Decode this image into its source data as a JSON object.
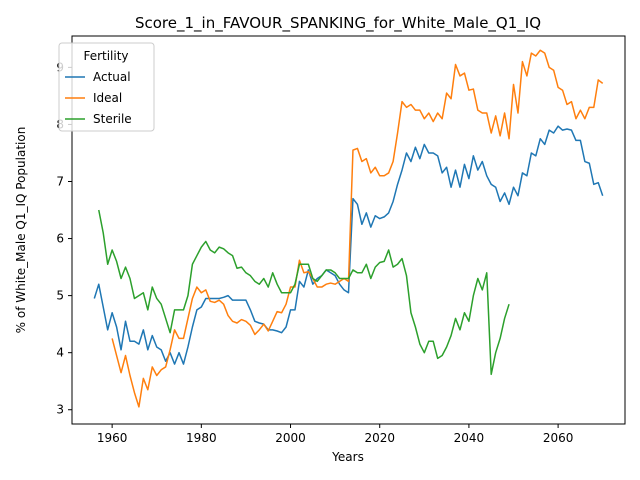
{
  "chart_data": {
    "type": "line",
    "title": "Score_1_in_FAVOUR_SPANKING_for_White_Male_Q1_IQ",
    "xlabel": "Years",
    "ylabel": "% of White_Male Q1_IQ Population",
    "xlim": [
      1951,
      2075
    ],
    "ylim": [
      2.75,
      9.55
    ],
    "xticks": [
      1960,
      1980,
      2000,
      2020,
      2040,
      2060
    ],
    "yticks": [
      3,
      4,
      5,
      6,
      7,
      8,
      9
    ],
    "grid": false,
    "legend": {
      "title": "Fertility",
      "placement": "top-left"
    },
    "series": [
      {
        "name": "Actual",
        "color": "#1f77b4",
        "x": [
          1956,
          1957,
          1958,
          1959,
          1960,
          1961,
          1962,
          1963,
          1964,
          1965,
          1966,
          1967,
          1968,
          1969,
          1970,
          1971,
          1972,
          1973,
          1974,
          1975,
          1976,
          1977,
          1978,
          1979,
          1980,
          1981,
          1982,
          1983,
          1984,
          1985,
          1986,
          1987,
          1988,
          1989,
          1990,
          1991,
          1992,
          1993,
          1994,
          1995,
          1996,
          1997,
          1998,
          1999,
          2000,
          2001,
          2002,
          2003,
          2004,
          2005,
          2006,
          2007,
          2008,
          2009,
          2010,
          2011,
          2012,
          2013,
          2014,
          2015,
          2016,
          2017,
          2018,
          2019,
          2020,
          2021,
          2022,
          2023,
          2024,
          2025,
          2026,
          2027,
          2028,
          2029,
          2030,
          2031,
          2032,
          2033,
          2034,
          2035,
          2036,
          2037,
          2038,
          2039,
          2040,
          2041,
          2042,
          2043,
          2044,
          2045,
          2046,
          2047,
          2048,
          2049,
          2050,
          2051,
          2052,
          2053,
          2054,
          2055,
          2056,
          2057,
          2058,
          2059,
          2060,
          2061,
          2062,
          2063,
          2064,
          2065,
          2066,
          2067,
          2068,
          2069,
          2070
        ],
        "y": [
          4.95,
          5.2,
          4.8,
          4.4,
          4.7,
          4.45,
          4.05,
          4.55,
          4.2,
          4.2,
          4.15,
          4.4,
          4.05,
          4.3,
          4.1,
          4.05,
          3.85,
          4.0,
          3.8,
          4.0,
          3.8,
          4.1,
          4.45,
          4.75,
          4.8,
          4.95,
          4.95,
          4.95,
          4.95,
          4.97,
          5.0,
          4.92,
          4.92,
          4.92,
          4.92,
          4.75,
          4.55,
          4.52,
          4.5,
          4.4,
          4.4,
          4.38,
          4.35,
          4.45,
          4.75,
          4.75,
          5.25,
          5.15,
          5.45,
          5.2,
          5.3,
          5.35,
          5.45,
          5.4,
          5.35,
          5.2,
          5.1,
          5.05,
          6.7,
          6.6,
          6.25,
          6.45,
          6.2,
          6.4,
          6.35,
          6.38,
          6.45,
          6.65,
          6.95,
          7.2,
          7.5,
          7.35,
          7.6,
          7.4,
          7.65,
          7.5,
          7.5,
          7.45,
          7.15,
          7.25,
          6.9,
          7.2,
          6.9,
          7.3,
          7.05,
          7.45,
          7.2,
          7.35,
          7.1,
          6.95,
          6.9,
          6.65,
          6.8,
          6.6,
          6.9,
          6.75,
          7.15,
          7.1,
          7.5,
          7.45,
          7.75,
          7.65,
          7.9,
          7.85,
          7.97,
          7.9,
          7.92,
          7.9,
          7.72,
          7.72,
          7.35,
          7.32,
          6.95,
          6.98,
          6.75
        ]
      },
      {
        "name": "Ideal",
        "color": "#ff7f0e",
        "x": [
          1960,
          1961,
          1962,
          1963,
          1964,
          1965,
          1966,
          1967,
          1968,
          1969,
          1970,
          1971,
          1972,
          1973,
          1974,
          1975,
          1976,
          1977,
          1978,
          1979,
          1980,
          1981,
          1982,
          1983,
          1984,
          1985,
          1986,
          1987,
          1988,
          1989,
          1990,
          1991,
          1992,
          1993,
          1994,
          1995,
          1996,
          1997,
          1998,
          1999,
          2000,
          2001,
          2002,
          2003,
          2004,
          2005,
          2006,
          2007,
          2008,
          2009,
          2010,
          2011,
          2012,
          2013,
          2014,
          2015,
          2016,
          2017,
          2018,
          2019,
          2020,
          2021,
          2022,
          2023,
          2024,
          2025,
          2026,
          2027,
          2028,
          2029,
          2030,
          2031,
          2032,
          2033,
          2034,
          2035,
          2036,
          2037,
          2038,
          2039,
          2040,
          2041,
          2042,
          2043,
          2044,
          2045,
          2046,
          2047,
          2048,
          2049,
          2050,
          2051,
          2052,
          2053,
          2054,
          2055,
          2056,
          2057,
          2058,
          2059,
          2060,
          2061,
          2062,
          2063,
          2064,
          2065,
          2066,
          2067,
          2068,
          2069,
          2070
        ],
        "y": [
          4.25,
          3.95,
          3.65,
          3.95,
          3.6,
          3.3,
          3.05,
          3.55,
          3.35,
          3.75,
          3.6,
          3.7,
          3.75,
          4.05,
          4.4,
          4.25,
          4.25,
          4.6,
          4.95,
          5.15,
          5.05,
          5.1,
          4.9,
          4.88,
          4.92,
          4.85,
          4.65,
          4.55,
          4.52,
          4.58,
          4.55,
          4.48,
          4.32,
          4.4,
          4.5,
          4.38,
          4.55,
          4.72,
          4.7,
          4.85,
          5.15,
          5.15,
          5.62,
          5.4,
          5.42,
          5.3,
          5.15,
          5.15,
          5.2,
          5.22,
          5.2,
          5.25,
          5.3,
          5.25,
          7.55,
          7.58,
          7.35,
          7.4,
          7.15,
          7.25,
          7.1,
          7.1,
          7.15,
          7.35,
          7.85,
          8.4,
          8.3,
          8.35,
          8.25,
          8.25,
          8.1,
          8.2,
          8.05,
          8.2,
          8.1,
          8.55,
          8.45,
          9.05,
          8.85,
          8.9,
          8.6,
          8.62,
          8.25,
          8.2,
          8.2,
          7.85,
          8.15,
          7.8,
          8.2,
          7.75,
          8.7,
          8.2,
          9.1,
          8.85,
          9.25,
          9.2,
          9.3,
          9.25,
          9.0,
          8.95,
          8.65,
          8.6,
          8.35,
          8.4,
          8.1,
          8.25,
          8.1,
          8.3,
          8.3,
          8.78,
          8.72
        ]
      },
      {
        "name": "Sterile",
        "color": "#2ca02c",
        "x": [
          1957,
          1958,
          1959,
          1960,
          1961,
          1962,
          1963,
          1964,
          1965,
          1966,
          1967,
          1968,
          1969,
          1970,
          1971,
          1972,
          1973,
          1974,
          1975,
          1976,
          1977,
          1978,
          1979,
          1980,
          1981,
          1982,
          1983,
          1984,
          1985,
          1986,
          1987,
          1988,
          1989,
          1990,
          1991,
          1992,
          1993,
          1994,
          1995,
          1996,
          1997,
          1998,
          1999,
          2000,
          2001,
          2002,
          2003,
          2004,
          2005,
          2006,
          2007,
          2008,
          2009,
          2010,
          2011,
          2012,
          2013,
          2014,
          2015,
          2016,
          2017,
          2018,
          2019,
          2020,
          2021,
          2022,
          2023,
          2024,
          2025,
          2026,
          2027,
          2028,
          2029,
          2030,
          2031,
          2032,
          2033,
          2034,
          2035,
          2036,
          2037,
          2038,
          2039,
          2040,
          2041,
          2042,
          2043,
          2044,
          2045,
          2046,
          2047,
          2048,
          2049
        ],
        "y": [
          6.5,
          6.1,
          5.55,
          5.8,
          5.6,
          5.3,
          5.5,
          5.3,
          4.95,
          5.0,
          5.05,
          4.75,
          5.15,
          4.95,
          4.85,
          4.6,
          4.35,
          4.75,
          4.75,
          4.75,
          5.0,
          5.55,
          5.7,
          5.85,
          5.95,
          5.8,
          5.75,
          5.85,
          5.82,
          5.75,
          5.7,
          5.48,
          5.5,
          5.4,
          5.35,
          5.25,
          5.2,
          5.3,
          5.15,
          5.4,
          5.2,
          5.05,
          5.05,
          5.05,
          5.2,
          5.55,
          5.55,
          5.55,
          5.3,
          5.25,
          5.35,
          5.45,
          5.45,
          5.4,
          5.3,
          5.3,
          5.3,
          5.45,
          5.4,
          5.4,
          5.55,
          5.3,
          5.5,
          5.58,
          5.6,
          5.8,
          5.5,
          5.55,
          5.65,
          5.35,
          4.7,
          4.45,
          4.15,
          4.0,
          4.2,
          4.2,
          3.9,
          3.95,
          4.1,
          4.3,
          4.6,
          4.4,
          4.7,
          4.55,
          5.0,
          5.3,
          5.1,
          5.4,
          3.62,
          4.0,
          4.25,
          4.6,
          4.85
        ]
      }
    ]
  }
}
